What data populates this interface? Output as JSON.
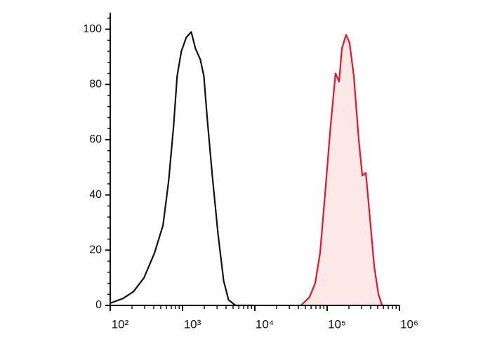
{
  "chart_data": {
    "type": "line",
    "xscale": "log",
    "xlim": [
      100,
      1000000
    ],
    "ylim": [
      0,
      106
    ],
    "xticks": [
      {
        "value": 100,
        "label": "10²"
      },
      {
        "value": 1000,
        "label": "10³"
      },
      {
        "value": 10000,
        "label": "10⁴"
      },
      {
        "value": 100000,
        "label": "10⁵"
      },
      {
        "value": 1000000,
        "label": "10⁶"
      }
    ],
    "yticks": [
      0,
      20,
      40,
      60,
      80,
      100
    ],
    "minor_ticks": true,
    "series": [
      {
        "color": "#111111",
        "x": [
          100,
          150,
          210,
          293,
          410,
          537,
          643,
          752,
          841,
          962,
          1127,
          1319,
          1508,
          1763,
          1972,
          2208,
          2582,
          3090,
          3698,
          4325,
          5408,
          9485
        ],
        "values": [
          0.8,
          2.5,
          5,
          10,
          19,
          29,
          45,
          65,
          83,
          92,
          97,
          99,
          93,
          89,
          83,
          67,
          47,
          26,
          9,
          2,
          0,
          0
        ]
      },
      {
        "color": "#e8142c",
        "fill": "#fde8e8",
        "x": [
          43550,
          57000,
          68200,
          79800,
          93300,
          111700,
          130600,
          146200,
          159900,
          182900,
          204700,
          233900,
          273500,
          306300,
          342700,
          383000,
          448000,
          513000,
          574000
        ],
        "values": [
          0,
          3,
          8,
          19,
          40,
          65,
          84,
          81,
          93,
          98,
          95,
          83,
          60,
          47,
          48,
          34,
          14,
          4,
          0
        ]
      }
    ]
  }
}
